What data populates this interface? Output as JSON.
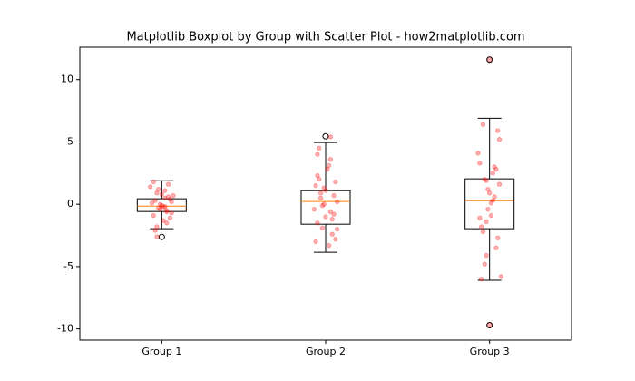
{
  "chart_data": {
    "type": "boxplot",
    "title": "Matplotlib Boxplot by Group with Scatter Plot - how2matplotlib.com",
    "xticks": [
      {
        "value": 1,
        "label": "Group 1"
      },
      {
        "value": 2,
        "label": "Group 2"
      },
      {
        "value": 3,
        "label": "Group 3"
      }
    ],
    "xlim": [
      0.5,
      3.5
    ],
    "ylim": [
      -10.9,
      12.6
    ],
    "yticks": [
      -10,
      -5,
      0,
      5,
      10
    ],
    "box_color": "#000000",
    "median_color": "#ff7f0e",
    "boxes": [
      {
        "whislo": -1.96,
        "q1": -0.58,
        "med": -0.15,
        "q3": 0.44,
        "whishi": 1.89,
        "fliers": [
          -2.62
        ]
      },
      {
        "whislo": -3.85,
        "q1": -1.6,
        "med": 0.22,
        "q3": 1.09,
        "whishi": 4.95,
        "fliers": [
          5.45
        ]
      },
      {
        "whislo": -6.1,
        "q1": -1.96,
        "med": 0.29,
        "q3": 2.04,
        "whishi": 6.9,
        "fliers": [
          11.6,
          -9.7
        ]
      }
    ],
    "series": [
      {
        "color": "#ff0000",
        "alpha": 0.3,
        "x": [
          0.96,
          1.03,
          0.98,
          1.05,
          0.94,
          1.01,
          1.07,
          0.97,
          1.02,
          0.99,
          1.04,
          0.95,
          1.06,
          1.0,
          0.97,
          1.03,
          0.93,
          1.01,
          1.05,
          0.98,
          1.02,
          0.96,
          1.04,
          0.99,
          1.06,
          0.95,
          1.03,
          1.0,
          0.97,
          1.02
        ],
        "values": [
          0.3,
          -0.5,
          1.2,
          -1.1,
          0.1,
          -0.2,
          0.7,
          -1.8,
          0.5,
          -0.4,
          1.6,
          -0.9,
          0.2,
          -0.1,
          0.9,
          -0.6,
          1.4,
          -1.3,
          0.4,
          -0.3,
          1.1,
          -2.1,
          0.6,
          0.0,
          -0.7,
          1.8,
          -1.5,
          0.8,
          -2.6,
          -0.2
        ]
      },
      {
        "color": "#ff0000",
        "alpha": 0.3,
        "x": [
          1.97,
          2.04,
          1.95,
          2.06,
          2.0,
          1.93,
          2.03,
          1.98,
          2.07,
          1.96,
          2.02,
          1.94,
          2.05,
          2.01,
          1.97,
          2.04,
          1.99,
          2.03,
          1.95,
          2.06,
          1.98,
          2.02,
          1.94,
          2.05,
          2.0,
          1.96,
          2.07,
          1.99,
          2.03,
          1.95
        ],
        "values": [
          0.5,
          -1.2,
          2.3,
          -2.8,
          1.1,
          -0.4,
          3.6,
          -1.9,
          0.2,
          4.5,
          -3.3,
          1.5,
          -0.8,
          2.8,
          0.9,
          -2.4,
          0.0,
          5.4,
          -1.5,
          1.8,
          -0.1,
          3.1,
          -3.0,
          0.7,
          -1.0,
          2.0,
          -2.0,
          1.3,
          -0.6,
          4.0
        ]
      },
      {
        "color": "#ff0000",
        "alpha": 0.3,
        "x": [
          3.02,
          2.95,
          3.06,
          2.98,
          3.03,
          2.94,
          3.05,
          2.99,
          3.07,
          2.96,
          3.01,
          2.97,
          3.04,
          2.93,
          3.02,
          2.98,
          3.06,
          2.95,
          3.03,
          2.99,
          3.05,
          2.96,
          3.0,
          2.97,
          3.04,
          2.94,
          3.01,
          3.0,
          3.0,
          2.98
        ],
        "values": [
          2.5,
          -1.8,
          5.2,
          -4.1,
          0.6,
          3.3,
          -2.7,
          1.2,
          -5.8,
          6.4,
          -0.9,
          2.0,
          -3.5,
          4.1,
          0.3,
          -1.4,
          1.6,
          -6.0,
          3.0,
          -0.4,
          5.9,
          -2.2,
          0.9,
          -4.8,
          2.8,
          -1.1,
          0.1,
          11.6,
          -9.7,
          1.9
        ]
      }
    ]
  }
}
